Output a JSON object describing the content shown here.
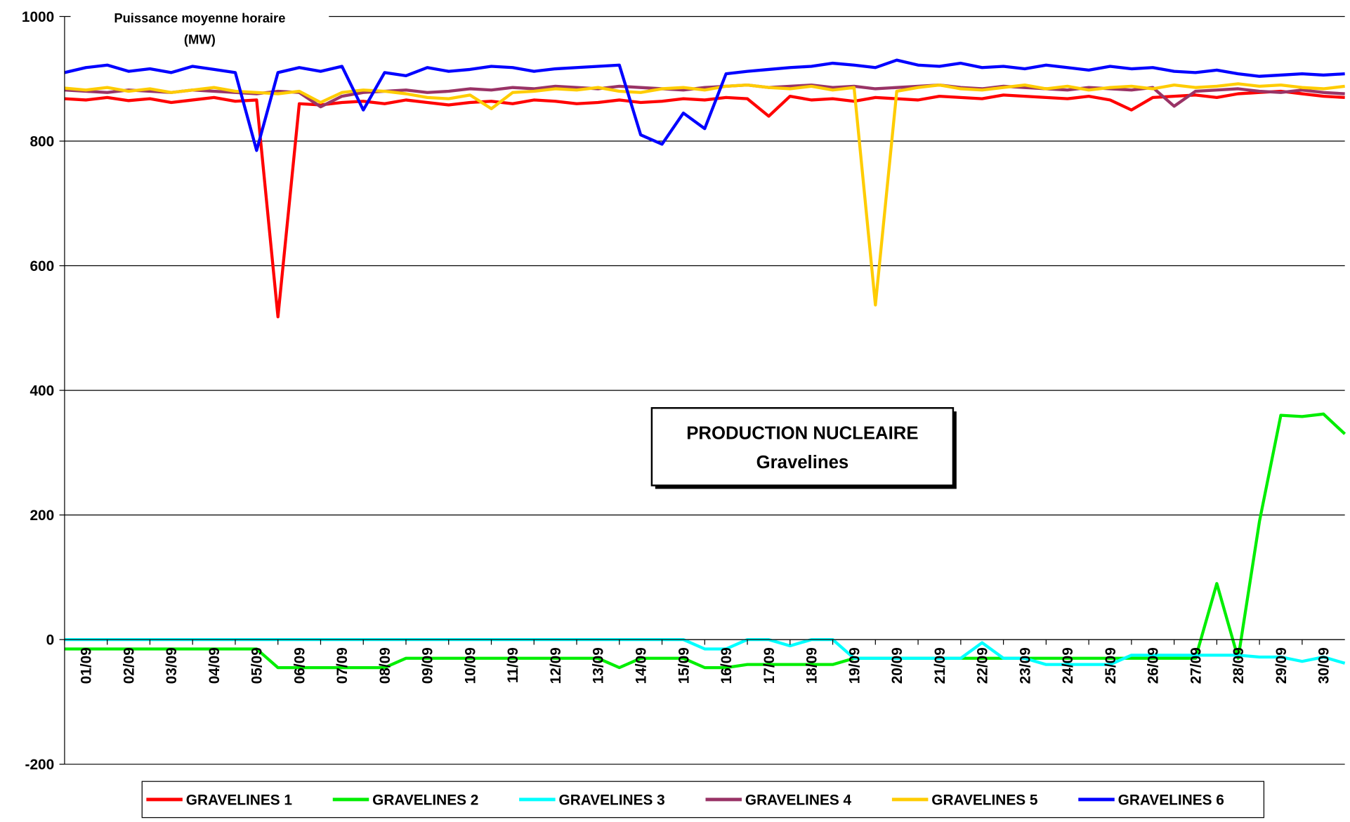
{
  "chart_data": {
    "type": "line",
    "title_lines": [
      "PRODUCTION NUCLEAIRE",
      "Gravelines"
    ],
    "y_label_lines": [
      "Puissance moyenne horaire",
      "(MW)"
    ],
    "x": [
      0,
      0.5,
      1,
      1.5,
      2,
      2.5,
      3,
      3.5,
      4,
      4.5,
      5,
      5.5,
      6,
      6.5,
      7,
      7.5,
      8,
      8.5,
      9,
      9.5,
      10,
      10.5,
      11,
      11.5,
      12,
      12.5,
      13,
      13.5,
      14,
      14.5,
      15,
      15.5,
      16,
      16.5,
      17,
      17.5,
      18,
      18.5,
      19,
      19.5,
      20,
      20.5,
      21,
      21.5,
      22,
      22.5,
      23,
      23.5,
      24,
      24.5,
      25,
      25.5,
      26,
      26.5,
      27,
      27.5,
      28,
      28.5,
      29,
      29.5,
      30
    ],
    "xlim": [
      0,
      30
    ],
    "xticks": [
      {
        "value": 0,
        "label": "01/09"
      },
      {
        "value": 1,
        "label": "02/09"
      },
      {
        "value": 2,
        "label": "03/09"
      },
      {
        "value": 3,
        "label": "04/09"
      },
      {
        "value": 4,
        "label": "05/09"
      },
      {
        "value": 5,
        "label": "06/09"
      },
      {
        "value": 6,
        "label": "07/09"
      },
      {
        "value": 7,
        "label": "08/09"
      },
      {
        "value": 8,
        "label": "09/09"
      },
      {
        "value": 9,
        "label": "10/09"
      },
      {
        "value": 10,
        "label": "11/09"
      },
      {
        "value": 11,
        "label": "12/09"
      },
      {
        "value": 12,
        "label": "13/09"
      },
      {
        "value": 13,
        "label": "14/09"
      },
      {
        "value": 14,
        "label": "15/09"
      },
      {
        "value": 15,
        "label": "16/09"
      },
      {
        "value": 16,
        "label": "17/09"
      },
      {
        "value": 17,
        "label": "18/09"
      },
      {
        "value": 18,
        "label": "19/09"
      },
      {
        "value": 19,
        "label": "20/09"
      },
      {
        "value": 20,
        "label": "21/09"
      },
      {
        "value": 21,
        "label": "22/09"
      },
      {
        "value": 22,
        "label": "23/09"
      },
      {
        "value": 23,
        "label": "24/09"
      },
      {
        "value": 24,
        "label": "25/09"
      },
      {
        "value": 25,
        "label": "26/09"
      },
      {
        "value": 26,
        "label": "27/09"
      },
      {
        "value": 27,
        "label": "28/09"
      },
      {
        "value": 28,
        "label": "29/09"
      },
      {
        "value": 29,
        "label": "30/09"
      }
    ],
    "ylim": [
      -200,
      1000
    ],
    "yticks": [
      -200,
      0,
      200,
      400,
      600,
      800,
      1000
    ],
    "grid": true,
    "legend": "bottom",
    "series": [
      {
        "name": "GRAVELINES 1",
        "color": "#ff0000",
        "values": [
          868,
          866,
          870,
          865,
          868,
          862,
          866,
          870,
          864,
          866,
          518,
          860,
          858,
          862,
          864,
          860,
          866,
          862,
          858,
          862,
          864,
          860,
          866,
          864,
          860,
          862,
          866,
          862,
          864,
          868,
          866,
          870,
          868,
          840,
          872,
          866,
          868,
          864,
          870,
          868,
          866,
          872,
          870,
          868,
          874,
          872,
          870,
          868,
          872,
          866,
          850,
          870,
          872,
          874,
          870,
          876,
          878,
          880,
          876,
          872,
          870
        ]
      },
      {
        "name": "GRAVELINES 2",
        "color": "#00ee00",
        "values": [
          -15,
          -15,
          -15,
          -15,
          -15,
          -15,
          -15,
          -15,
          -15,
          -15,
          -45,
          -45,
          -45,
          -45,
          -45,
          -45,
          -30,
          -30,
          -30,
          -30,
          -30,
          -30,
          -30,
          -30,
          -30,
          -30,
          -45,
          -30,
          -30,
          -30,
          -45,
          -45,
          -40,
          -40,
          -40,
          -40,
          -40,
          -30,
          -30,
          -30,
          -30,
          -30,
          -30,
          -30,
          -30,
          -30,
          -30,
          -30,
          -30,
          -30,
          -30,
          -30,
          -30,
          -30,
          90,
          -30,
          190,
          360,
          358,
          362,
          330
        ]
      },
      {
        "name": "GRAVELINES 3",
        "color": "#00ffff",
        "values": [
          0,
          0,
          0,
          0,
          0,
          0,
          0,
          0,
          0,
          0,
          0,
          0,
          0,
          0,
          0,
          0,
          0,
          0,
          0,
          0,
          0,
          0,
          0,
          0,
          0,
          0,
          0,
          0,
          0,
          0,
          -15,
          -15,
          0,
          0,
          -10,
          0,
          0,
          -30,
          -30,
          -30,
          -30,
          -30,
          -30,
          -5,
          -30,
          -30,
          -40,
          -40,
          -40,
          -40,
          -25,
          -25,
          -25,
          -25,
          -25,
          -25,
          -28,
          -28,
          -35,
          -28,
          -38
        ]
      },
      {
        "name": "GRAVELINES 4",
        "color": "#993366",
        "values": [
          882,
          880,
          878,
          882,
          880,
          878,
          882,
          880,
          878,
          876,
          880,
          878,
          855,
          872,
          878,
          880,
          882,
          878,
          880,
          884,
          882,
          886,
          884,
          888,
          886,
          884,
          888,
          886,
          884,
          882,
          886,
          888,
          890,
          886,
          888,
          890,
          886,
          888,
          884,
          886,
          888,
          890,
          886,
          884,
          888,
          886,
          884,
          882,
          886,
          884,
          882,
          886,
          856,
          880,
          882,
          884,
          880,
          878,
          882,
          878,
          876
        ]
      },
      {
        "name": "GRAVELINES 5",
        "color": "#ffcc00",
        "values": [
          885,
          882,
          886,
          880,
          884,
          878,
          882,
          886,
          880,
          878,
          876,
          880,
          862,
          878,
          882,
          880,
          876,
          870,
          868,
          874,
          852,
          878,
          880,
          884,
          882,
          886,
          880,
          878,
          884,
          886,
          882,
          888,
          890,
          886,
          884,
          888,
          882,
          886,
          537,
          880,
          886,
          890,
          884,
          882,
          886,
          890,
          884,
          888,
          882,
          886,
          888,
          884,
          890,
          886,
          888,
          892,
          888,
          890,
          886,
          884,
          888
        ]
      },
      {
        "name": "GRAVELINES 6",
        "color": "#0000ff",
        "values": [
          910,
          918,
          922,
          912,
          916,
          910,
          920,
          915,
          910,
          785,
          910,
          918,
          912,
          920,
          850,
          910,
          905,
          918,
          912,
          915,
          920,
          918,
          912,
          916,
          918,
          920,
          922,
          810,
          795,
          845,
          820,
          908,
          912,
          915,
          918,
          920,
          925,
          922,
          918,
          930,
          922,
          920,
          925,
          918,
          920,
          916,
          922,
          918,
          914,
          920,
          916,
          918,
          912,
          910,
          914,
          908,
          904,
          906,
          908,
          906,
          908
        ]
      }
    ]
  }
}
